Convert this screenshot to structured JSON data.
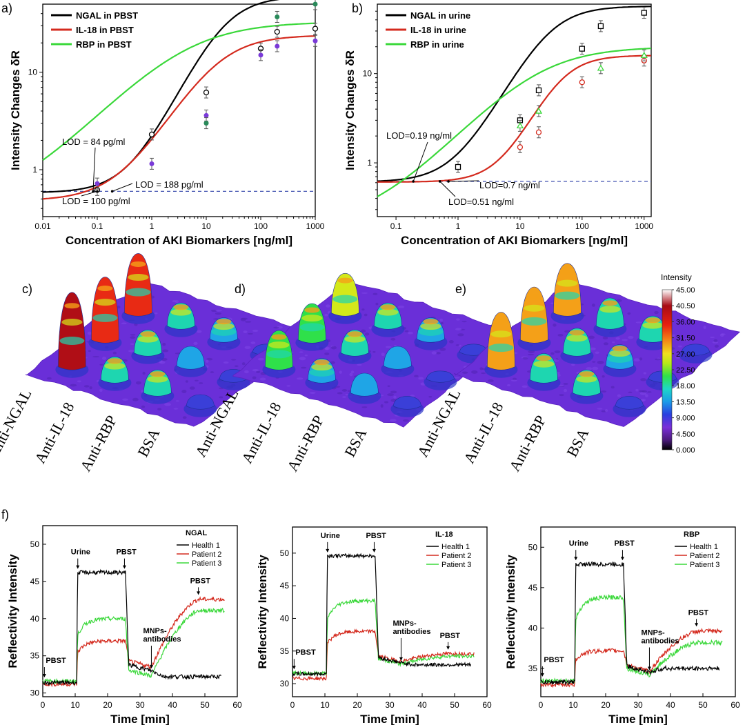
{
  "colors": {
    "ngal": "#000000",
    "il18": "#d42a1e",
    "rbp": "#3ad83a",
    "lod": "#2b3fa8",
    "map_bg": "#6a2fd8"
  },
  "panels": {
    "a": "a)",
    "b": "b)",
    "c": "c)",
    "d": "d)",
    "e": "e)",
    "f": "f)"
  },
  "chart_data": [
    {
      "id": "a",
      "type": "scatter",
      "title": "",
      "xscale": "log",
      "yscale": "log",
      "xlabel": "Concentration of AKI Biomarkers [ng/ml]",
      "ylabel": "Intensity Changes δR",
      "xlim": [
        0.01,
        1000
      ],
      "ylim": [
        0.33,
        50
      ],
      "xticks": [
        "0.01",
        "0.1",
        "1",
        "10",
        "100",
        "1000"
      ],
      "yticks": [
        "1",
        "10"
      ],
      "lod_line": 0.6,
      "series": [
        {
          "name": "NGAL in PBST",
          "color": "#000000",
          "marker": "open-circle",
          "fit": {
            "A1": 0.58,
            "A2": 60,
            "x0": 22,
            "p": 1.15
          },
          "points": [
            {
              "x": 0.1,
              "y": 0.62
            },
            {
              "x": 1,
              "y": 2.3
            },
            {
              "x": 10,
              "y": 6.2
            },
            {
              "x": 100,
              "y": 17.5
            },
            {
              "x": 200,
              "y": 26
            },
            {
              "x": 1000,
              "y": 28
            }
          ]
        },
        {
          "name": "IL-18 in PBST",
          "color": "#d42a1e",
          "marker": "purple-dot",
          "fit": {
            "A1": 0.48,
            "A2": 24,
            "x0": 16,
            "p": 0.95
          },
          "points": [
            {
              "x": 0.1,
              "y": 0.72
            },
            {
              "x": 1,
              "y": 1.15
            },
            {
              "x": 10,
              "y": 3.6
            },
            {
              "x": 100,
              "y": 15
            },
            {
              "x": 200,
              "y": 18.5
            },
            {
              "x": 1000,
              "y": 21
            }
          ]
        },
        {
          "name": "RBP in PBST",
          "color": "#3ad83a",
          "marker": "green-dot",
          "fit": {
            "A1": 0.38,
            "A2": 33,
            "x0": 4,
            "p": 0.6
          },
          "points": [
            {
              "x": 10,
              "y": 3.0
            },
            {
              "x": 200,
              "y": 37
            },
            {
              "x": 1000,
              "y": 50
            }
          ]
        }
      ],
      "annotations": [
        "LOD = 84 pg/ml",
        "LOD = 188 pg/ml",
        "LOD = 100 pg/ml"
      ]
    },
    {
      "id": "b",
      "type": "scatter",
      "title": "",
      "xscale": "log",
      "yscale": "log",
      "xlabel": "Concentration of AKI Biomarkers [ng/ml]",
      "ylabel": "Intensity Changes δR",
      "xlim": [
        0.05,
        1300
      ],
      "ylim": [
        0.25,
        60
      ],
      "xticks": [
        "0.1",
        "1",
        "10",
        "100",
        "1000"
      ],
      "yticks": [
        "1",
        "10"
      ],
      "lod_line": 0.62,
      "series": [
        {
          "name": "NGAL in urine",
          "color": "#000000",
          "marker": "open-square",
          "fit": {
            "A1": 0.61,
            "A2": 57,
            "x0": 30,
            "p": 1.3
          },
          "points": [
            {
              "x": 1,
              "y": 0.9
            },
            {
              "x": 10,
              "y": 3.0
            },
            {
              "x": 20,
              "y": 6.5
            },
            {
              "x": 100,
              "y": 19
            },
            {
              "x": 200,
              "y": 34
            },
            {
              "x": 1000,
              "y": 48
            }
          ]
        },
        {
          "name": "IL-18 in urine",
          "color": "#d42a1e",
          "marker": "open-circle",
          "fit": {
            "A1": 0.61,
            "A2": 16,
            "x0": 45,
            "p": 1.5
          },
          "points": [
            {
              "x": 10,
              "y": 1.5
            },
            {
              "x": 20,
              "y": 2.2
            },
            {
              "x": 100,
              "y": 8
            },
            {
              "x": 1000,
              "y": 14
            }
          ]
        },
        {
          "name": "RBP in urine",
          "color": "#3ad83a",
          "marker": "open-triangle",
          "fit": {
            "A1": 0.2,
            "A2": 20,
            "x0": 20,
            "p": 0.75
          },
          "points": [
            {
              "x": 10,
              "y": 2.6
            },
            {
              "x": 20,
              "y": 3.8
            },
            {
              "x": 200,
              "y": 11.5
            },
            {
              "x": 1000,
              "y": 16
            }
          ]
        }
      ],
      "annotations": [
        "LOD=0.19 ng/ml",
        "LOD=0.7 ng/ml",
        "LOD=0.51 ng/ml"
      ]
    },
    {
      "id": "c",
      "type": "heatmap",
      "rows": [
        "Anti-NGAL",
        "Anti-IL-18",
        "Anti-RBP",
        "BSA"
      ],
      "peaks": [
        [
          45,
          38,
          36
        ],
        [
          14,
          14,
          14
        ],
        [
          14,
          12,
          13
        ],
        [
          7,
          6,
          5
        ]
      ]
    },
    {
      "id": "d",
      "type": "heatmap",
      "rows": [
        "Anti-NGAL",
        "Anti-IL-18",
        "Anti-RBP",
        "BSA"
      ],
      "peaks": [
        [
          22,
          22,
          24
        ],
        [
          13,
          14,
          14
        ],
        [
          12,
          12,
          13
        ],
        [
          6,
          5,
          5
        ]
      ]
    },
    {
      "id": "e",
      "type": "heatmap",
      "rows": [
        "Anti-NGAL",
        "Anti-IL-18",
        "Anti-RBP",
        "BSA"
      ],
      "peaks": [
        [
          33,
          32,
          30
        ],
        [
          16,
          15,
          17
        ],
        [
          14,
          13,
          14
        ],
        [
          6,
          5,
          5
        ]
      ]
    },
    {
      "id": "colorbar",
      "type": "colorbar",
      "title": "Intensity",
      "ticks": [
        "45.00",
        "40.50",
        "36.00",
        "31.50",
        "27.00",
        "22.50",
        "18.00",
        "13.50",
        "9.000",
        "4.500",
        "0.000"
      ]
    },
    {
      "id": "f1",
      "type": "line",
      "title": "NGAL",
      "xlabel": "Time [min]",
      "ylabel": "Reflectivity Intensity",
      "xlim": [
        0,
        60
      ],
      "ylim": [
        29.5,
        52.5
      ],
      "xticks": [
        "0",
        "10",
        "20",
        "30",
        "40",
        "50",
        "60"
      ],
      "yticks": [
        "30",
        "35",
        "40",
        "45",
        "50"
      ],
      "series": [
        {
          "name": "Health 1",
          "color": "#000000",
          "base": 31.4,
          "plateau": 46.2,
          "dip": 33,
          "end": 32.2,
          "end_time": 55,
          "rise": 0
        },
        {
          "name": "Patient 2",
          "color": "#d42a1e",
          "base": 31.2,
          "plateau": 37,
          "dip": 33.5,
          "end": 42.6,
          "end_time": 56,
          "rise": 1
        },
        {
          "name": "Patient 3",
          "color": "#3ad83a",
          "base": 31.6,
          "plateau": 40,
          "dip": 32.3,
          "end": 41.1,
          "end_time": 56,
          "rise": 1
        }
      ],
      "annotations": [
        "PBST",
        "Urine",
        "PBST",
        "MNPs-\nantibodies",
        "PBST"
      ]
    },
    {
      "id": "f2",
      "type": "line",
      "title": "IL-18",
      "xlabel": "Time [min]",
      "ylabel": "Reflectivity Intensity",
      "xlim": [
        0,
        60
      ],
      "ylim": [
        28,
        54
      ],
      "xticks": [
        "0",
        "10",
        "20",
        "30",
        "40",
        "50",
        "60"
      ],
      "yticks": [
        "30",
        "35",
        "40",
        "45",
        "50"
      ],
      "series": [
        {
          "name": "Health 1",
          "color": "#000000",
          "base": 31.5,
          "plateau": 49.6,
          "dip": 33.2,
          "end": 32.9,
          "end_time": 55,
          "rise": 0
        },
        {
          "name": "Patient 2",
          "color": "#d42a1e",
          "base": 30.8,
          "plateau": 38,
          "dip": 33.4,
          "end": 34.6,
          "end_time": 56,
          "rise": 1
        },
        {
          "name": "Patient 3",
          "color": "#3ad83a",
          "base": 31.6,
          "plateau": 42.7,
          "dip": 33.0,
          "end": 34.2,
          "end_time": 56,
          "rise": 1
        }
      ],
      "annotations": [
        "PBST",
        "Urine",
        "PBST",
        "MNPs-\nantibodies",
        "PBST"
      ]
    },
    {
      "id": "f3",
      "type": "line",
      "title": "RBP",
      "xlabel": "Time [min]",
      "ylabel": "Reflectivity Intensity",
      "xlim": [
        0,
        60
      ],
      "ylim": [
        31.5,
        52.5
      ],
      "xticks": [
        "0",
        "10",
        "20",
        "30",
        "40",
        "50",
        "60"
      ],
      "yticks": [
        "35",
        "40",
        "45",
        "50"
      ],
      "series": [
        {
          "name": "Health 1",
          "color": "#000000",
          "base": 33.3,
          "plateau": 47.9,
          "dip": 34.5,
          "end": 35,
          "end_time": 55,
          "rise": 0
        },
        {
          "name": "Patient 2",
          "color": "#d42a1e",
          "base": 33,
          "plateau": 37.2,
          "dip": 34.6,
          "end": 39.6,
          "end_time": 56,
          "rise": 1
        },
        {
          "name": "Patient 3",
          "color": "#3ad83a",
          "base": 33.5,
          "plateau": 43.8,
          "dip": 34.2,
          "end": 38.2,
          "end_time": 56,
          "rise": 1
        }
      ],
      "annotations": [
        "PBST",
        "Urine",
        "PBST",
        "MNPs-\nantibodies",
        "PBST"
      ]
    }
  ]
}
